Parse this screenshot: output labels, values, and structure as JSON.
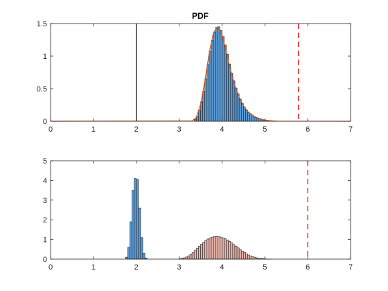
{
  "chart_data": [
    {
      "type": "bar",
      "title": "PDF",
      "xlabel": "",
      "ylabel": "",
      "xlim": [
        0,
        7
      ],
      "ylim": [
        0,
        1.5
      ],
      "xticks": [
        0,
        1,
        2,
        3,
        4,
        5,
        6,
        7
      ],
      "yticks": [
        0,
        0.5,
        1,
        1.5
      ],
      "grid": false,
      "legend": "none",
      "bin_width": 0.05,
      "series": [
        {
          "kind": "histogram",
          "color": "#5b9bd5",
          "edgecolor": "#1a1a1a",
          "x": [
            3.35,
            3.4,
            3.45,
            3.5,
            3.55,
            3.6,
            3.65,
            3.7,
            3.75,
            3.8,
            3.85,
            3.9,
            3.95,
            4.0,
            4.05,
            4.1,
            4.15,
            4.2,
            4.25,
            4.3,
            4.35,
            4.4,
            4.45,
            4.5,
            4.55,
            4.6,
            4.65,
            4.7,
            4.75,
            4.8,
            4.85,
            4.9,
            4.95,
            5.0,
            5.05,
            5.1,
            5.15,
            5.2
          ],
          "values": [
            0.03,
            0.08,
            0.17,
            0.3,
            0.46,
            0.65,
            0.87,
            1.07,
            1.24,
            1.37,
            1.44,
            1.45,
            1.4,
            1.3,
            1.17,
            1.03,
            0.88,
            0.74,
            0.62,
            0.51,
            0.42,
            0.34,
            0.27,
            0.21,
            0.17,
            0.13,
            0.1,
            0.08,
            0.06,
            0.05,
            0.04,
            0.03,
            0.02,
            0.015,
            0.01,
            0.008,
            0.005,
            0.003
          ]
        },
        {
          "kind": "density-line",
          "color": "#d95319",
          "x": [
            0,
            3.3,
            3.4,
            3.5,
            3.6,
            3.7,
            3.8,
            3.9,
            4.0,
            4.1,
            4.2,
            4.3,
            4.4,
            4.5,
            4.6,
            4.7,
            4.8,
            4.9,
            5.0,
            5.1,
            5.2,
            5.3,
            7
          ],
          "values": [
            0,
            0.005,
            0.06,
            0.26,
            0.62,
            1.04,
            1.36,
            1.45,
            1.33,
            1.06,
            0.78,
            0.55,
            0.37,
            0.24,
            0.15,
            0.1,
            0.06,
            0.035,
            0.02,
            0.01,
            0.005,
            0.002,
            0
          ]
        }
      ],
      "vlines": [
        {
          "x": 2.0,
          "style": "solid",
          "color": "#000000"
        },
        {
          "x": 5.78,
          "style": "dashed",
          "color": "#ff0000"
        }
      ]
    },
    {
      "type": "bar",
      "title": "",
      "xlabel": "",
      "ylabel": "",
      "xlim": [
        0,
        7
      ],
      "ylim": [
        0,
        5
      ],
      "xticks": [
        0,
        1,
        2,
        3,
        4,
        5,
        6,
        7
      ],
      "yticks": [
        0,
        1,
        2,
        3,
        4,
        5
      ],
      "grid": false,
      "legend": "none",
      "bin_width": 0.05,
      "series": [
        {
          "kind": "histogram",
          "color": "#5b9bd5",
          "edgecolor": "#1a1a1a",
          "x": [
            1.75,
            1.8,
            1.85,
            1.9,
            1.95,
            2.0,
            2.05,
            2.1,
            2.15,
            2.2
          ],
          "values": [
            0.1,
            0.6,
            1.9,
            3.5,
            4.1,
            4.05,
            2.6,
            1.1,
            0.3,
            0.06
          ]
        },
        {
          "kind": "histogram",
          "color": "#e8b4ac",
          "edgecolor": "#1a1a1a",
          "x": [
            3.0,
            3.05,
            3.1,
            3.15,
            3.2,
            3.25,
            3.3,
            3.35,
            3.4,
            3.45,
            3.5,
            3.55,
            3.6,
            3.65,
            3.7,
            3.75,
            3.8,
            3.85,
            3.9,
            3.95,
            4.0,
            4.05,
            4.1,
            4.15,
            4.2,
            4.25,
            4.3,
            4.35,
            4.4,
            4.45,
            4.5,
            4.55,
            4.6,
            4.65,
            4.7,
            4.75,
            4.8,
            4.85,
            4.9,
            4.95,
            5.0,
            5.05,
            5.1
          ],
          "values": [
            0.02,
            0.04,
            0.07,
            0.11,
            0.17,
            0.24,
            0.33,
            0.43,
            0.54,
            0.65,
            0.76,
            0.86,
            0.95,
            1.02,
            1.08,
            1.12,
            1.14,
            1.15,
            1.14,
            1.12,
            1.08,
            1.03,
            0.97,
            0.9,
            0.82,
            0.74,
            0.66,
            0.57,
            0.49,
            0.41,
            0.34,
            0.27,
            0.21,
            0.16,
            0.12,
            0.09,
            0.06,
            0.04,
            0.03,
            0.02,
            0.01,
            0.007,
            0.004
          ]
        }
      ],
      "vlines": [
        {
          "x": 6.0,
          "style": "dashed",
          "color": "#ff0000"
        }
      ]
    }
  ]
}
